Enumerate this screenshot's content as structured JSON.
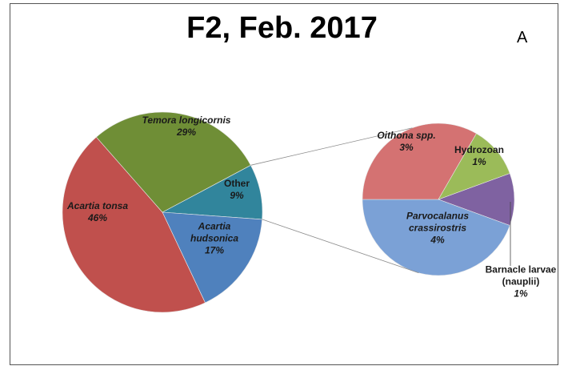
{
  "chart_data": {
    "type": "pie-of-pie",
    "title": "F2, Feb. 2017",
    "annotation": "A",
    "pies": [
      {
        "categories": [
          "Other",
          "Acartia hudsonica",
          "Acartia tonsa",
          "Temora longicornis"
        ],
        "values": [
          9,
          17,
          46,
          29
        ],
        "value_labels": [
          "9%",
          "17%",
          "46%",
          "29%"
        ],
        "colors": [
          "#31859c",
          "#4f81bd",
          "#c0504d",
          "#6f8e36"
        ]
      },
      {
        "categories": [
          "Barnacle larvae (nauplii)",
          "Parvocalanus crassirostris",
          "Oithona spp.",
          "Hydrozoan"
        ],
        "values": [
          1,
          4,
          3,
          1
        ],
        "value_labels": [
          "1%",
          "4%",
          "3%",
          "1%"
        ],
        "colors": [
          "#7f62a1",
          "#7ba1d6",
          "#d47272",
          "#9bbb59"
        ]
      }
    ]
  }
}
